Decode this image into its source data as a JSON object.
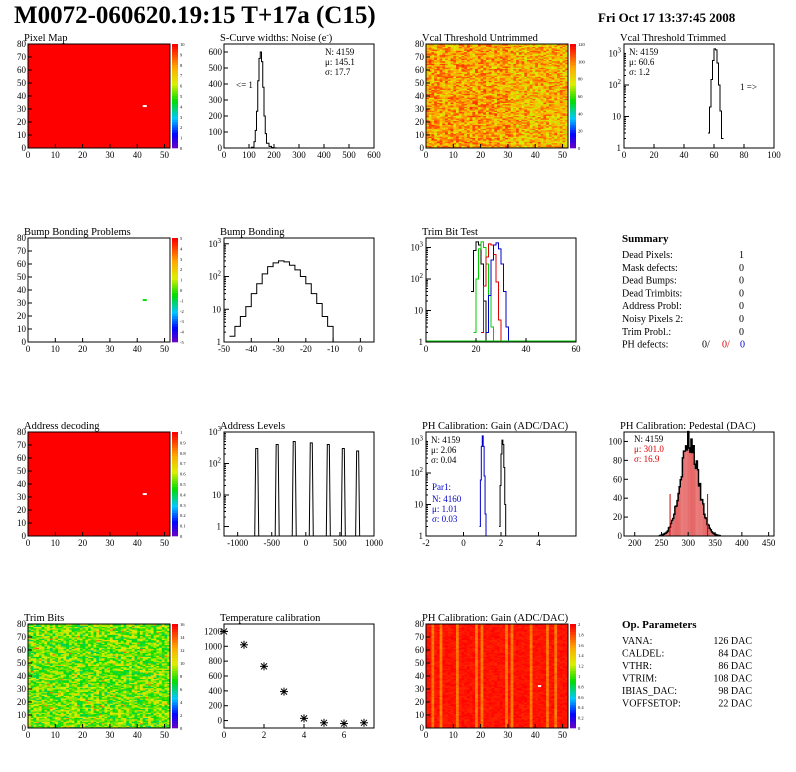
{
  "header": {
    "title": "M0072-060620.19:15 T+17a (C15)",
    "date": "Fri Oct 17 13:37:45 2008"
  },
  "colors": {
    "dead": "#ff0000",
    "hist_line": "#000000",
    "blue": "#0000cc",
    "green": "#00cc00",
    "red_text": "#dd0000"
  },
  "chart_data": [
    {
      "id": "pixel-map",
      "type": "heatmap",
      "title": "Pixel Map",
      "xlim": [
        0,
        52
      ],
      "ylim": [
        0,
        80
      ],
      "xticks": [
        0,
        10,
        20,
        30,
        40,
        50
      ],
      "yticks": [
        0,
        10,
        20,
        30,
        40,
        50,
        60,
        70,
        80
      ],
      "zticks": [
        0,
        1,
        2,
        3,
        4,
        5,
        6,
        7,
        8,
        9,
        10
      ],
      "fill": "uniform-red",
      "special_pixels": [
        {
          "col": 42,
          "row": 32,
          "value": 0
        }
      ]
    },
    {
      "id": "scurve-noise",
      "type": "line",
      "title": "S-Curve widths: Noise (e",
      "title_sup": "-",
      "title_end": ")",
      "xlim": [
        0,
        600
      ],
      "ylim": [
        0,
        650
      ],
      "xticks": [
        0,
        100,
        200,
        300,
        400,
        500,
        600
      ],
      "yticks": [
        0,
        100,
        200,
        300,
        400,
        500,
        600
      ],
      "stats": [
        "N: 4159",
        "μ: 145.1",
        "σ: 17.7"
      ],
      "underflow_label": "<= 1",
      "x": [
        100,
        110,
        120,
        125,
        130,
        135,
        140,
        145,
        150,
        155,
        160,
        165,
        170,
        180,
        190,
        200,
        210
      ],
      "y": [
        0,
        5,
        40,
        110,
        230,
        420,
        560,
        600,
        540,
        380,
        200,
        90,
        30,
        10,
        3,
        1,
        0
      ]
    },
    {
      "id": "vcal-untrimmed",
      "type": "heatmap",
      "title": "Vcal Threshold Untrimmed",
      "xlim": [
        0,
        52
      ],
      "ylim": [
        0,
        80
      ],
      "xticks": [
        0,
        10,
        20,
        30,
        40,
        50
      ],
      "yticks": [
        0,
        10,
        20,
        30,
        40,
        50,
        60,
        70,
        80
      ],
      "zticks": [
        0,
        20,
        40,
        60,
        80,
        100,
        120
      ],
      "fill": "noise-orange"
    },
    {
      "id": "vcal-trimmed",
      "type": "line",
      "title": "Vcal Threshold Trimmed",
      "xlim": [
        0,
        100
      ],
      "ylim_log": [
        1,
        2000
      ],
      "log_y": true,
      "xticks": [
        0,
        20,
        40,
        60,
        80,
        100
      ],
      "stats": [
        "N: 4159",
        "μ: 60.6",
        "σ: 1.2"
      ],
      "overflow_label": "1 =>",
      "x": [
        56,
        57,
        58,
        59,
        60,
        61,
        62,
        63,
        64,
        65
      ],
      "y": [
        3,
        20,
        150,
        600,
        1400,
        1300,
        500,
        100,
        15,
        2
      ]
    },
    {
      "id": "bump-map",
      "type": "heatmap",
      "title": "Bump Bonding Problems",
      "xlim": [
        0,
        52
      ],
      "ylim": [
        0,
        80
      ],
      "xticks": [
        0,
        10,
        20,
        30,
        40,
        50
      ],
      "yticks": [
        0,
        10,
        20,
        30,
        40,
        50,
        60,
        70,
        80
      ],
      "zticks": [
        -5,
        -4,
        -3,
        -2,
        -1,
        0,
        1,
        2,
        3,
        4,
        5
      ],
      "fill": "empty",
      "special_pixels": [
        {
          "col": 42,
          "row": 32,
          "value": 1
        }
      ]
    },
    {
      "id": "bump-hist",
      "type": "line",
      "title": "Bump Bonding",
      "xlim": [
        -50,
        5
      ],
      "ylim_log": [
        1,
        1500
      ],
      "log_y": true,
      "xticks": [
        -50,
        -40,
        -30,
        -20,
        -10,
        0
      ],
      "x": [
        -48,
        -46,
        -44,
        -42,
        -40,
        -38,
        -36,
        -34,
        -32,
        -30,
        -28,
        -26,
        -24,
        -22,
        -20,
        -18,
        -16,
        -14,
        -12,
        -10,
        -8,
        -1,
        0
      ],
      "y": [
        1.5,
        3,
        6,
        12,
        30,
        60,
        120,
        200,
        260,
        300,
        280,
        220,
        160,
        100,
        60,
        30,
        15,
        6,
        3,
        1,
        0.5,
        1,
        0.5
      ]
    },
    {
      "id": "trim-bit",
      "type": "line",
      "title": "Trim Bit Test",
      "xlim": [
        0,
        60
      ],
      "ylim_log": [
        1,
        2000
      ],
      "log_y": true,
      "xticks": [
        0,
        20,
        40,
        60
      ],
      "series": [
        {
          "color": "#000000",
          "x": [
            18,
            19,
            20,
            21,
            22,
            23,
            24
          ],
          "y": [
            40,
            800,
            1500,
            1200,
            300,
            20,
            1
          ]
        },
        {
          "color": "#00cc00",
          "x": [
            19,
            20,
            21,
            22,
            23,
            24,
            25,
            26,
            27
          ],
          "y": [
            2,
            100,
            900,
            1500,
            1000,
            300,
            30,
            3,
            1
          ]
        },
        {
          "color": "#dd0000",
          "x": [
            22,
            23,
            24,
            25,
            26,
            27,
            28,
            29,
            30
          ],
          "y": [
            2,
            60,
            500,
            1300,
            1200,
            600,
            80,
            5,
            1
          ]
        },
        {
          "color": "#0000cc",
          "x": [
            24,
            25,
            26,
            27,
            28,
            29,
            30,
            31,
            32,
            33
          ],
          "y": [
            2,
            30,
            400,
            1200,
            1400,
            900,
            300,
            40,
            3,
            1
          ]
        }
      ]
    },
    {
      "id": "summary",
      "type": "table",
      "title": "Summary",
      "rows": [
        {
          "label": "Dead Pixels:",
          "value": "1"
        },
        {
          "label": "Mask defects:",
          "value": "0"
        },
        {
          "label": "Dead Bumps:",
          "value": "0"
        },
        {
          "label": "Dead Trimbits:",
          "value": "0"
        },
        {
          "label": "Address Probl:",
          "value": "0"
        },
        {
          "label": "Noisy Pixels 2:",
          "value": "0"
        },
        {
          "label": "Trim Probl.:",
          "value": "0"
        }
      ],
      "ph_defects": {
        "label": "PH defects:",
        "black": "0/",
        "red": "0/",
        "blue": "0"
      }
    },
    {
      "id": "address-map",
      "type": "heatmap",
      "title": "Address decoding",
      "xlim": [
        0,
        52
      ],
      "ylim": [
        0,
        80
      ],
      "xticks": [
        0,
        10,
        20,
        30,
        40,
        50
      ],
      "yticks": [
        0,
        10,
        20,
        30,
        40,
        50,
        60,
        70,
        80
      ],
      "zticks": [
        0,
        0.1,
        0.2,
        0.3,
        0.4,
        0.5,
        0.6,
        0.7,
        0.8,
        0.9,
        1
      ],
      "fill": "uniform-red",
      "special_pixels": [
        {
          "col": 42,
          "row": 32,
          "value": 0
        }
      ]
    },
    {
      "id": "address-levels",
      "type": "line",
      "title": "Address Levels",
      "xlim": [
        -1200,
        1000
      ],
      "ylim_log": [
        0.5,
        1000
      ],
      "log_y": true,
      "xticks": [
        -1000,
        -500,
        0,
        500,
        1000
      ],
      "peaks": [
        {
          "x": -720,
          "y": 300
        },
        {
          "x": -420,
          "y": 400
        },
        {
          "x": -170,
          "y": 500
        },
        {
          "x": 80,
          "y": 450
        },
        {
          "x": 330,
          "y": 400
        },
        {
          "x": 550,
          "y": 300
        },
        {
          "x": 760,
          "y": 250
        }
      ]
    },
    {
      "id": "ph-gain",
      "type": "line",
      "title": "PH Calibration: Gain (ADC/DAC)",
      "xlim": [
        -2,
        6
      ],
      "ylim_log": [
        1,
        2000
      ],
      "log_y": true,
      "xticks": [
        -2,
        0,
        2,
        4
      ],
      "stats": [
        "N: 4159",
        "μ: 2.06",
        "σ: 0.04"
      ],
      "stats2_title": "Par1:",
      "stats2": [
        "N: 4160",
        "μ: 1.01",
        "σ: 0.03"
      ],
      "series": [
        {
          "color": "#000000",
          "x": [
            1.9,
            1.95,
            2.0,
            2.05,
            2.1,
            2.15,
            2.2,
            2.25
          ],
          "y": [
            2,
            40,
            400,
            1100,
            800,
            150,
            10,
            1
          ]
        },
        {
          "color": "#0000cc",
          "x": [
            0.85,
            0.9,
            0.95,
            1.0,
            1.05,
            1.1,
            1.15,
            1.2
          ],
          "y": [
            2,
            60,
            700,
            1500,
            700,
            80,
            5,
            1
          ]
        }
      ]
    },
    {
      "id": "ph-pedestal",
      "type": "bar",
      "title": "PH Calibration: Pedestal (DAC)",
      "xlim": [
        180,
        460
      ],
      "ylim": [
        0,
        110
      ],
      "xticks": [
        200,
        250,
        300,
        350,
        400,
        450
      ],
      "yticks": [
        0,
        20,
        40,
        60,
        80,
        100
      ],
      "stats": [
        "N: 4159"
      ],
      "stats_red": [
        "μ: 301.0",
        "σ: 16.9"
      ],
      "cut_lines": [
        266,
        336
      ],
      "mean": 301,
      "sigma": 16.9,
      "peak": 102
    },
    {
      "id": "trim-bits",
      "type": "heatmap",
      "title": "Trim Bits",
      "xlim": [
        0,
        52
      ],
      "ylim": [
        0,
        80
      ],
      "xticks": [
        0,
        10,
        20,
        30,
        40,
        50
      ],
      "yticks": [
        0,
        10,
        20,
        30,
        40,
        50,
        60,
        70,
        80
      ],
      "zticks": [
        0,
        2,
        4,
        6,
        8,
        10,
        12,
        14,
        16
      ],
      "fill": "noise-green"
    },
    {
      "id": "temp-cal",
      "type": "scatter",
      "title": "Temperature calibration",
      "xlim": [
        0,
        7.5
      ],
      "ylim": [
        -100,
        1300
      ],
      "xticks": [
        0,
        2,
        4,
        6
      ],
      "yticks": [
        0,
        200,
        400,
        600,
        800,
        1000,
        1200
      ],
      "x": [
        0,
        1,
        2,
        3,
        4,
        5,
        6,
        7
      ],
      "y": [
        1200,
        1020,
        730,
        390,
        30,
        -30,
        -40,
        -30
      ]
    },
    {
      "id": "ph-gain-map",
      "type": "heatmap",
      "title": "PH Calibration: Gain (ADC/DAC)",
      "xlim": [
        0,
        52
      ],
      "ylim": [
        0,
        80
      ],
      "xticks": [
        0,
        10,
        20,
        30,
        40,
        50
      ],
      "yticks": [
        0,
        10,
        20,
        30,
        40,
        50,
        60,
        70,
        80
      ],
      "zticks": [
        0,
        0.2,
        0.4,
        0.6,
        0.8,
        1,
        1.2,
        1.4,
        1.6,
        1.8,
        2
      ],
      "fill": "striped-red"
    },
    {
      "id": "op-params",
      "type": "table",
      "title": "Op. Parameters",
      "rows": [
        {
          "label": "VANA:",
          "value": "126 DAC"
        },
        {
          "label": "CALDEL:",
          "value": "84 DAC"
        },
        {
          "label": "VTHR:",
          "value": "86 DAC"
        },
        {
          "label": "VTRIM:",
          "value": "108 DAC"
        },
        {
          "label": "IBIAS_DAC:",
          "value": "98 DAC"
        },
        {
          "label": "VOFFSETOP:",
          "value": "22 DAC"
        }
      ]
    }
  ]
}
